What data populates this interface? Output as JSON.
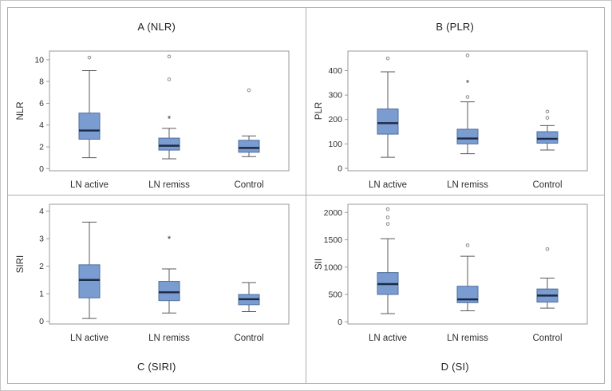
{
  "figure": {
    "background": "#ffffff",
    "frame_color": "#aeaeae",
    "box_fill": "#7a9cd1",
    "box_stroke": "#4d6d9e",
    "median_color": "#1d2a45",
    "whisker_color": "#5a5a5a",
    "outlier_color": "#8a8a8a",
    "axis_color": "#9a9a9a"
  },
  "chart_data": [
    {
      "type": "boxplot",
      "title": "A (NLR)",
      "title_position": "top",
      "ylabel": "NLR",
      "categories": [
        "LN active",
        "LN remiss",
        "Control"
      ],
      "ylim": [
        -0.2,
        10.8
      ],
      "yticks": [
        0,
        2,
        4,
        6,
        8,
        10
      ],
      "boxes": [
        {
          "low": 1.0,
          "q1": 2.7,
          "median": 3.5,
          "q3": 5.1,
          "high": 9.0,
          "outliers": [
            10.2
          ],
          "extremes": []
        },
        {
          "low": 0.9,
          "q1": 1.7,
          "median": 2.1,
          "q3": 2.8,
          "high": 3.7,
          "outliers": [
            8.2,
            10.3
          ],
          "extremes": [
            4.6
          ]
        },
        {
          "low": 1.1,
          "q1": 1.5,
          "median": 1.9,
          "q3": 2.6,
          "high": 3.0,
          "outliers": [
            7.2
          ],
          "extremes": []
        }
      ]
    },
    {
      "type": "boxplot",
      "title": "B (PLR)",
      "title_position": "top",
      "ylabel": "PLR",
      "categories": [
        "LN active",
        "LN remiss",
        "Control"
      ],
      "ylim": [
        -10,
        480
      ],
      "yticks": [
        0,
        100,
        200,
        300,
        400
      ],
      "boxes": [
        {
          "low": 45,
          "q1": 140,
          "median": 185,
          "q3": 243,
          "high": 395,
          "outliers": [
            450
          ],
          "extremes": []
        },
        {
          "low": 60,
          "q1": 100,
          "median": 122,
          "q3": 160,
          "high": 272,
          "outliers": [
            292,
            462
          ],
          "extremes": [
            350
          ]
        },
        {
          "low": 75,
          "q1": 103,
          "median": 121,
          "q3": 150,
          "high": 175,
          "outliers": [
            207,
            232
          ],
          "extremes": []
        }
      ]
    },
    {
      "type": "boxplot",
      "title": "C (SIRI)",
      "title_position": "bottom",
      "ylabel": "SIRI",
      "categories": [
        "LN active",
        "LN remiss",
        "Control"
      ],
      "ylim": [
        -0.1,
        4.25
      ],
      "yticks": [
        0,
        1,
        2,
        3,
        4
      ],
      "boxes": [
        {
          "low": 0.1,
          "q1": 0.85,
          "median": 1.5,
          "q3": 2.05,
          "high": 3.6,
          "outliers": [],
          "extremes": []
        },
        {
          "low": 0.3,
          "q1": 0.75,
          "median": 1.05,
          "q3": 1.45,
          "high": 1.9,
          "outliers": [],
          "extremes": [
            3.0
          ]
        },
        {
          "low": 0.35,
          "q1": 0.6,
          "median": 0.8,
          "q3": 0.97,
          "high": 1.4,
          "outliers": [],
          "extremes": []
        }
      ]
    },
    {
      "type": "boxplot",
      "title": "D (SI)",
      "title_position": "bottom",
      "ylabel": "SII",
      "categories": [
        "LN active",
        "LN remiss",
        "Control"
      ],
      "ylim": [
        -40,
        2150
      ],
      "yticks": [
        0,
        500,
        1000,
        1500,
        2000
      ],
      "boxes": [
        {
          "low": 150,
          "q1": 500,
          "median": 690,
          "q3": 900,
          "high": 1520,
          "outliers": [
            1790,
            1910,
            2060
          ],
          "extremes": []
        },
        {
          "low": 200,
          "q1": 350,
          "median": 410,
          "q3": 650,
          "high": 1200,
          "outliers": [
            1400
          ],
          "extremes": []
        },
        {
          "low": 250,
          "q1": 360,
          "median": 480,
          "q3": 600,
          "high": 800,
          "outliers": [
            1330
          ],
          "extremes": []
        }
      ]
    }
  ]
}
